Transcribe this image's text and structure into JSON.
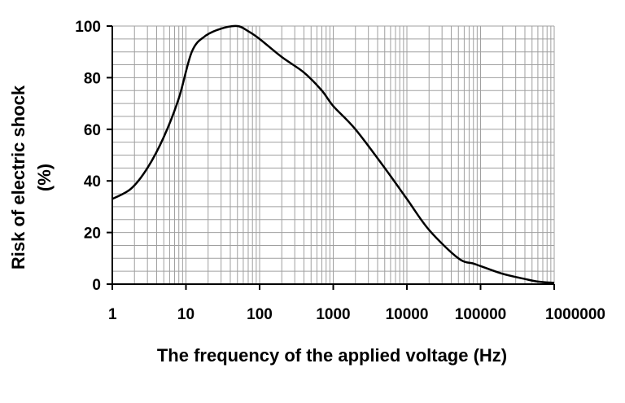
{
  "chart_data": {
    "type": "line",
    "xscale": "log",
    "xlim": [
      1,
      1000000
    ],
    "ylim": [
      0,
      100
    ],
    "grid": true,
    "xlabel": "The frequency of the applied voltage (Hz)",
    "ylabel_line1": "Risk of electric shock",
    "ylabel_line2": "(%)",
    "xticks": [
      "1",
      "10",
      "100",
      "1000",
      "10000",
      "100000",
      "1000000"
    ],
    "xtick_values": [
      1,
      10,
      100,
      1000,
      10000,
      100000,
      1000000
    ],
    "yticks": [
      "0",
      "20",
      "40",
      "60",
      "80",
      "100"
    ],
    "ytick_values": [
      0,
      20,
      40,
      60,
      80,
      100
    ],
    "series": [
      {
        "x": [
          1,
          1.8,
          3,
          5,
          8,
          12,
          18,
          30,
          50,
          70,
          100,
          200,
          400,
          700,
          1000,
          2000,
          5000,
          10000,
          20000,
          50000,
          80000,
          100000,
          200000,
          400000,
          600000,
          1000000
        ],
        "y": [
          33,
          37,
          45,
          57,
          72,
          90,
          96,
          99,
          100,
          98,
          95,
          88,
          82,
          75,
          69,
          60,
          45,
          33,
          21,
          10,
          8,
          7,
          4,
          2,
          1,
          0.5
        ],
        "color": "#000000"
      }
    ]
  }
}
